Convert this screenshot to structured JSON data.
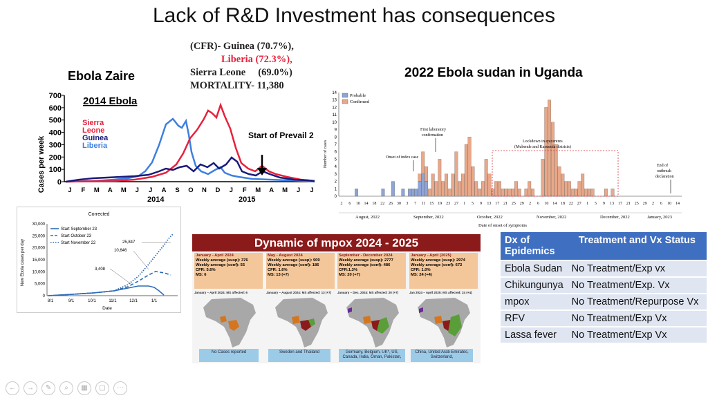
{
  "slide": {
    "title": "Lack of  R&D Investment has consequences",
    "cfr": {
      "line1": "(CFR)- Guinea (70.7%),",
      "line2": "Liberia (72.3%),",
      "line3": "Sierra Leone     (69.0%)",
      "line4": "MORTALITY- 11,380"
    },
    "ebola_zaire": "Ebola Zaire",
    "uganda_title": "2022 Ebola sudan in Uganda"
  },
  "chart_2014": {
    "title": "2014 Ebola",
    "ylabel": "Cases per week",
    "yticks": [
      "700",
      "600",
      "500",
      "400",
      "300",
      "200",
      "100",
      "0"
    ],
    "months": [
      "J",
      "F",
      "M",
      "A",
      "M",
      "J",
      "J",
      "A",
      "S",
      "O",
      "N",
      "D",
      "J",
      "F",
      "M",
      "A",
      "M",
      "J",
      "J"
    ],
    "years": [
      "2014",
      "2015"
    ],
    "annotation": "Start of Prevail 2",
    "legend": [
      "Sierra",
      "Leone",
      "Guinea",
      "Liberia"
    ],
    "colors": {
      "sierra_leone": "#e8213b",
      "guinea": "#1a1a7a",
      "liberia": "#3d7fe0"
    }
  },
  "chart_corrected": {
    "title": "Corrected",
    "ylabel": "New Ebola cases per day",
    "xlabel": "Date",
    "yticks": [
      "30,000",
      "25,000",
      "20,000",
      "15,000",
      "10,000",
      "5,000",
      "0"
    ],
    "xticks": [
      "8/1",
      "9/1",
      "10/1",
      "11/1",
      "12/1",
      "1/1"
    ],
    "legend": [
      "Start September 23",
      "Start October 23",
      "Start November 22"
    ],
    "labels": [
      "25,847",
      "10,646",
      "3,408"
    ]
  },
  "chart_uganda": {
    "legend": [
      "Probable",
      "Confirmed"
    ],
    "ylabel": "Number of cases",
    "xlabel": "Date of onset of symptoms",
    "yticks": [
      "14",
      "13",
      "12",
      "11",
      "10",
      "9",
      "8",
      "7",
      "6",
      "5",
      "4",
      "3",
      "2",
      "1",
      "0"
    ],
    "annotations": {
      "index": "Onset of index case",
      "lab1": "First laboratory",
      "lab2": "confirmation",
      "lock1": "Lockdown in epicentres",
      "lock2": "(Mubende and Kassanda districts)",
      "end1": "End of",
      "end2": "outbreak",
      "end3": "declaration"
    },
    "day_labels": [
      "2",
      "6",
      "10",
      "14",
      "18",
      "22",
      "26",
      "30",
      "3",
      "7",
      "11",
      "15",
      "19",
      "23",
      "27",
      "1",
      "5",
      "9",
      "13",
      "17",
      "21",
      "25",
      "29",
      "2",
      "6",
      "10",
      "14",
      "18",
      "22",
      "27",
      "1",
      "5",
      "9",
      "13",
      "17",
      "21",
      "25",
      "29",
      "2",
      "6",
      "10",
      "14"
    ],
    "months": [
      "August, 2022",
      "September, 2022",
      "October, 2022",
      "November, 2022",
      "December, 2022",
      "January, 2023"
    ],
    "confirmed": [
      0,
      0,
      0,
      0,
      0,
      0,
      0,
      0,
      0,
      0,
      0,
      0,
      0,
      0,
      0,
      0,
      0,
      0,
      0,
      0,
      0,
      0,
      0,
      1,
      3,
      2,
      1,
      3,
      2,
      5,
      2,
      3,
      1,
      3,
      6,
      2,
      3,
      7,
      8,
      4,
      2,
      1,
      2,
      5,
      3,
      1,
      2,
      2,
      1,
      1,
      1,
      1,
      2,
      1,
      0,
      1,
      2,
      1,
      0,
      0,
      5,
      12,
      13,
      10,
      7,
      4,
      3,
      2,
      2,
      1,
      1,
      2,
      3,
      1,
      1,
      1,
      0,
      0,
      0,
      1,
      0,
      1,
      0,
      0,
      0,
      0,
      0,
      0,
      0,
      0,
      0,
      0,
      0,
      0,
      0,
      0,
      0,
      0,
      0,
      0,
      0
    ],
    "probable": [
      0,
      0,
      0,
      0,
      1,
      0,
      0,
      0,
      0,
      0,
      0,
      0,
      1,
      0,
      0,
      2,
      0,
      0,
      1,
      0,
      1,
      1,
      1,
      2,
      3,
      2,
      0,
      0,
      0,
      0,
      0,
      0,
      0,
      0,
      0,
      0,
      0,
      0,
      0,
      0,
      0,
      0,
      0,
      0,
      0,
      0,
      0,
      0,
      0,
      0,
      0,
      0,
      0,
      0,
      0,
      0,
      0,
      0,
      0,
      0,
      0,
      0,
      0,
      0,
      0,
      0,
      0,
      0,
      0,
      0,
      0,
      0,
      0,
      0,
      0,
      0,
      0,
      0,
      0,
      0,
      0,
      0,
      0,
      0,
      0,
      0,
      0,
      0,
      0,
      0,
      0,
      0,
      0,
      0,
      0,
      0,
      0,
      0,
      0,
      0,
      0
    ],
    "colors": {
      "confirmed": "#e8a889",
      "probable": "#8da4d6"
    }
  },
  "mpox": {
    "title": "Dynamic of mpox 2024 - 2025",
    "cards": [
      {
        "head": "January - April 2024",
        "l1": "Weekly average (susp): 376",
        "l2": "Weekly average (conf): 55",
        "l3": "CFR: 5.6%",
        "l4": "MS: 6",
        "sub": "January – April 2024: MS affected: 6",
        "foot": "No Cases reported"
      },
      {
        "head": "May - August 2024",
        "l1": "Weekly average (susp): 909",
        "l2": "Weekly average (conf): 186",
        "l3": "CFR: 1.6%",
        "l4": "MS: 13 (+7)",
        "sub": "January – August 2024: MS affected: 13 (+7)",
        "foot": "Sweden and Thailand"
      },
      {
        "head": "September - December 2024",
        "l1": "Weekly average (susp): 2777",
        "l2": "Weekly average (conf): 486",
        "l3": "CFR:1.3%",
        "l4": "MS: 20 (+7)",
        "sub": "January – Dec. 2024: MS affected: 20 (+7)",
        "foot": "Germany, Belgium, UK*, US, Canada, India, Oman, Pakistan,"
      },
      {
        "head": "January - April (2025)",
        "l1": "Weekly average (susp): 2974",
        "l2": "Weekly average (conf): 672",
        "l3": "CFR: 1.0%",
        "l4": "MS: 24 (+4)",
        "sub": "Jan 2024 – April 2025: MS affected: 24 (+4)",
        "foot": "China, United Arab Emirates, Switzerland,"
      }
    ]
  },
  "table": {
    "headers": [
      "Dx of Epidemics",
      "Treatment and Vx Status"
    ],
    "rows": [
      [
        "Ebola Sudan",
        "No Treatment/Exp vx"
      ],
      [
        "Chikungunya",
        "No Treatment/Exp. Vx"
      ],
      [
        "mpox",
        "No Treatment/Repurpose Vx"
      ],
      [
        "RFV",
        "No Treatment/Exp Vx"
      ],
      [
        "Lassa fever",
        "No Treatment/Exp Vx"
      ]
    ]
  },
  "toolbar": {
    "prev": "←",
    "next": "→",
    "pen": "✎",
    "search": "⌕",
    "slides": "▦",
    "video": "▢",
    "more": "⋯"
  }
}
